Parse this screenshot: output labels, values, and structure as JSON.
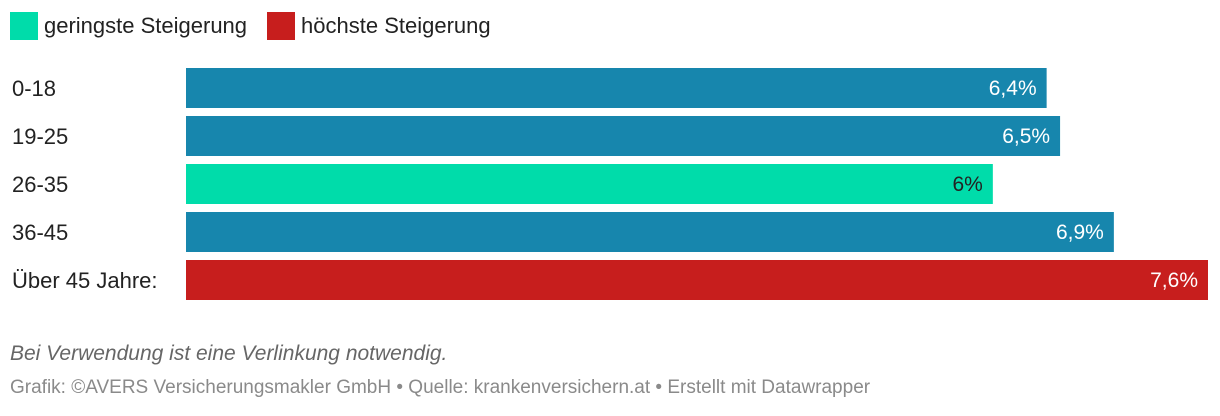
{
  "legend": [
    {
      "label": "geringste Steigerung",
      "color": "#00dcaa"
    },
    {
      "label": "höchste Steigerung",
      "color": "#c71e1d"
    }
  ],
  "chart_data": {
    "type": "bar",
    "orientation": "horizontal",
    "categories": [
      "0-18",
      "19-25",
      "26-35",
      "36-45",
      "Über 45 Jahre:"
    ],
    "values": [
      6.4,
      6.5,
      6.0,
      6.9,
      7.6
    ],
    "value_labels": [
      "6,4%",
      "6,5%",
      "6%",
      "6,9%",
      "7,6%"
    ],
    "colors": [
      "#1786ad",
      "#1786ad",
      "#00dcaa",
      "#1786ad",
      "#c71e1d"
    ],
    "label_colors": [
      "#ffffff",
      "#ffffff",
      "#222222",
      "#ffffff",
      "#ffffff"
    ],
    "xlim": [
      0,
      7.6
    ],
    "grid": false
  },
  "notes": "Bei Verwendung ist eine Verlinkung notwendig.",
  "footer": "Grafik: ©AVERS Versicherungsmakler GmbH • Quelle: krankenversichern.at • Erstellt mit Datawrapper"
}
